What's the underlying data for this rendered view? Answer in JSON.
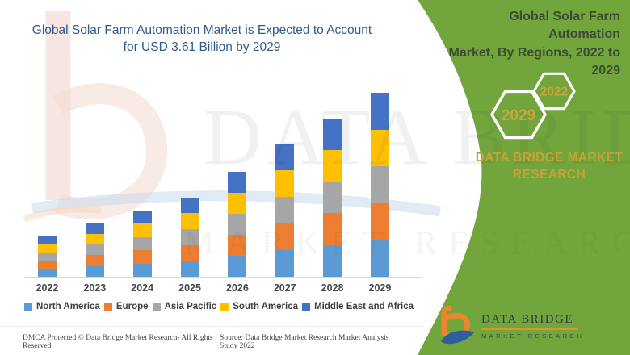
{
  "left_title": {
    "text": "Global Solar Farm Automation Market is Expected to Account\nfor USD 3.61 Billion by 2029",
    "color": "#2F5B8C"
  },
  "right_panel": {
    "bg_color": "#72A63C",
    "title": "Global Solar Farm Automation\nMarket, By Regions, 2022 to\n2029",
    "title_color": "#3D4A33",
    "hexagons": [
      {
        "label": "2029"
      },
      {
        "label": "2022"
      }
    ],
    "hexagon_text_color": "#C8A53E",
    "brand_text": "DATA BRIDGE MARKET\nRESEARCH",
    "brand_text_color": "#C8A239"
  },
  "logo": {
    "name": "DATA BRIDGE",
    "tagline": "MARKET RESEARCH"
  },
  "watermark": {
    "line1": "DATA BRIDGE",
    "line2": "MARKET RESEARCH"
  },
  "footer": {
    "left": "DMCA Protected © Data Bridge Market Research- All Rights Reserved.",
    "right": "Source: Data Bridge Market Research Market Analysis Study 2022"
  },
  "chart_data": {
    "type": "bar",
    "stacked": true,
    "title": "Global Solar Farm Automation Market is Expected to Account for USD 3.61 Billion by 2029",
    "unit": "USD Billion",
    "categories": [
      "2022",
      "2023",
      "2024",
      "2025",
      "2026",
      "2027",
      "2028",
      "2029"
    ],
    "series": [
      {
        "name": "North America",
        "color": "#5B9BD5",
        "values": [
          0.16,
          0.21,
          0.26,
          0.31,
          0.41,
          0.52,
          0.62,
          0.72
        ]
      },
      {
        "name": "Europe",
        "color": "#ED7D31",
        "values": [
          0.16,
          0.21,
          0.26,
          0.31,
          0.41,
          0.52,
          0.62,
          0.72
        ]
      },
      {
        "name": "Asia Pacific",
        "color": "#A6A6A6",
        "values": [
          0.16,
          0.21,
          0.26,
          0.31,
          0.41,
          0.52,
          0.62,
          0.72
        ]
      },
      {
        "name": "South America",
        "color": "#FFC000",
        "values": [
          0.16,
          0.21,
          0.26,
          0.31,
          0.41,
          0.52,
          0.62,
          0.72
        ]
      },
      {
        "name": "Middle East and Africa",
        "color": "#4472C4",
        "values": [
          0.16,
          0.21,
          0.26,
          0.31,
          0.41,
          0.52,
          0.62,
          0.72
        ]
      }
    ],
    "totals_estimated": [
      0.78,
      1.05,
      1.3,
      1.55,
      2.05,
      2.6,
      3.1,
      3.61
    ],
    "stated_value_2029": "USD 3.61 Billion",
    "y_axis_visible": false,
    "grid": false,
    "legend_position": "bottom"
  }
}
